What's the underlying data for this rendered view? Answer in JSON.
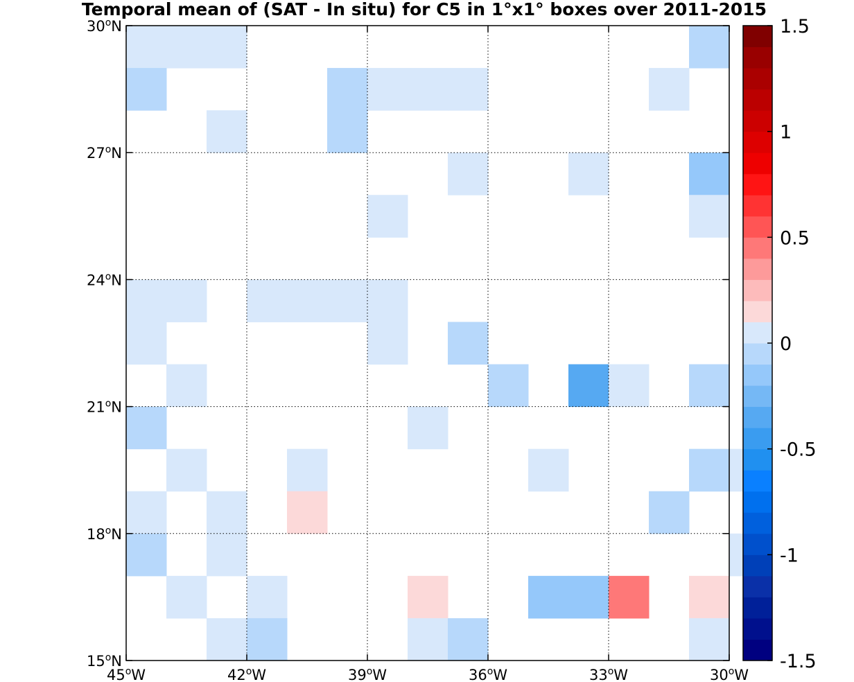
{
  "chart_data": {
    "type": "heatmap",
    "title": "Temporal mean of (SAT - In situ) for C5 in 1°x1° boxes over 2011-2015",
    "x_range": [
      -45,
      -30
    ],
    "y_range": [
      15,
      30
    ],
    "cell_size_deg": 1,
    "grid": true,
    "grid_style": "dotted",
    "x_ticks": [
      {
        "value": -45,
        "label": "45",
        "hemi": "W"
      },
      {
        "value": -42,
        "label": "42",
        "hemi": "W"
      },
      {
        "value": -39,
        "label": "39",
        "hemi": "W"
      },
      {
        "value": -36,
        "label": "36",
        "hemi": "W"
      },
      {
        "value": -33,
        "label": "33",
        "hemi": "W"
      },
      {
        "value": -30,
        "label": "30",
        "hemi": "W"
      }
    ],
    "y_ticks": [
      {
        "value": 15,
        "label": "15",
        "hemi": "N"
      },
      {
        "value": 18,
        "label": "18",
        "hemi": "N"
      },
      {
        "value": 21,
        "label": "21",
        "hemi": "N"
      },
      {
        "value": 24,
        "label": "24",
        "hemi": "N"
      },
      {
        "value": 27,
        "label": "27",
        "hemi": "N"
      },
      {
        "value": 30,
        "label": "30",
        "hemi": "N"
      }
    ],
    "colorbar": {
      "range": [
        -1.5,
        1.5
      ],
      "levels": 30,
      "colors": [
        "#000080",
        "#00108d",
        "#002099",
        "#0a30a8",
        "#0040b8",
        "#0050cc",
        "#0060dd",
        "#0070ee",
        "#0a80ff",
        "#2090f0",
        "#3a9cf0",
        "#56a9f2",
        "#75b8f5",
        "#95c8fa",
        "#b7d8fb",
        "#d8e8fb",
        "#fcd9d9",
        "#fdbbbb",
        "#fd9a9a",
        "#fe7878",
        "#ff5555",
        "#ff3333",
        "#ff1414",
        "#ee0000",
        "#dd0000",
        "#cc0000",
        "#bb0000",
        "#aa0000",
        "#990000",
        "#800000"
      ],
      "tick_labels": [
        {
          "value": 1.5,
          "label": "1.5"
        },
        {
          "value": 1,
          "label": "1"
        },
        {
          "value": 0.5,
          "label": "0.5"
        },
        {
          "value": 0,
          "label": "0"
        },
        {
          "value": -0.5,
          "label": "-0.5"
        },
        {
          "value": -1,
          "label": "-1"
        },
        {
          "value": -1.5,
          "label": "-1.5"
        }
      ]
    },
    "cells": [
      {
        "lon": -45,
        "lat": 29,
        "value": 0.05
      },
      {
        "lon": -44,
        "lat": 29,
        "value": 0.05
      },
      {
        "lon": -43,
        "lat": 29,
        "value": 0.05
      },
      {
        "lon": -31,
        "lat": 29,
        "value": -0.05
      },
      {
        "lon": -45,
        "lat": 28,
        "value": -0.05
      },
      {
        "lon": -40,
        "lat": 28,
        "value": -0.05
      },
      {
        "lon": -39,
        "lat": 28,
        "value": 0.05
      },
      {
        "lon": -38,
        "lat": 28,
        "value": 0.05
      },
      {
        "lon": -37,
        "lat": 28,
        "value": 0.05
      },
      {
        "lon": -32,
        "lat": 28,
        "value": 0.05
      },
      {
        "lon": -43,
        "lat": 27,
        "value": 0.05
      },
      {
        "lon": -40,
        "lat": 27,
        "value": -0.05
      },
      {
        "lon": -37,
        "lat": 26,
        "value": 0.05
      },
      {
        "lon": -34,
        "lat": 26,
        "value": 0.05
      },
      {
        "lon": -31,
        "lat": 26,
        "value": -0.15
      },
      {
        "lon": -39,
        "lat": 25,
        "value": 0.05
      },
      {
        "lon": -31,
        "lat": 25,
        "value": 0.05
      },
      {
        "lon": -45,
        "lat": 23,
        "value": 0.05
      },
      {
        "lon": -44,
        "lat": 23,
        "value": 0.05
      },
      {
        "lon": -42,
        "lat": 23,
        "value": 0.05
      },
      {
        "lon": -41,
        "lat": 23,
        "value": 0.05
      },
      {
        "lon": -40,
        "lat": 23,
        "value": 0.05
      },
      {
        "lon": -39,
        "lat": 23,
        "value": 0.05
      },
      {
        "lon": -45,
        "lat": 22,
        "value": 0.05
      },
      {
        "lon": -39,
        "lat": 22,
        "value": 0.05
      },
      {
        "lon": -37,
        "lat": 22,
        "value": -0.05
      },
      {
        "lon": -44,
        "lat": 21,
        "value": 0.05
      },
      {
        "lon": -36,
        "lat": 21,
        "value": -0.05
      },
      {
        "lon": -34,
        "lat": 21,
        "value": -0.3
      },
      {
        "lon": -33,
        "lat": 21,
        "value": 0.05
      },
      {
        "lon": -31,
        "lat": 21,
        "value": -0.05
      },
      {
        "lon": -45,
        "lat": 20,
        "value": -0.05
      },
      {
        "lon": -38,
        "lat": 20,
        "value": 0.05
      },
      {
        "lon": -44,
        "lat": 19,
        "value": 0.05
      },
      {
        "lon": -41,
        "lat": 19,
        "value": 0.05
      },
      {
        "lon": -35,
        "lat": 19,
        "value": 0.05
      },
      {
        "lon": -31,
        "lat": 19,
        "value": -0.05
      },
      {
        "lon": -30,
        "lat": 19,
        "value": 0.05
      },
      {
        "lon": -45,
        "lat": 18,
        "value": 0.05
      },
      {
        "lon": -43,
        "lat": 18,
        "value": 0.05
      },
      {
        "lon": -41,
        "lat": 18,
        "value": 0.15
      },
      {
        "lon": -32,
        "lat": 18,
        "value": -0.05
      },
      {
        "lon": -45,
        "lat": 17,
        "value": -0.05
      },
      {
        "lon": -43,
        "lat": 17,
        "value": 0.05
      },
      {
        "lon": -30,
        "lat": 17,
        "value": 0.05
      },
      {
        "lon": -44,
        "lat": 16,
        "value": 0.05
      },
      {
        "lon": -42,
        "lat": 16,
        "value": 0.05
      },
      {
        "lon": -38,
        "lat": 16,
        "value": 0.15
      },
      {
        "lon": -35,
        "lat": 16,
        "value": -0.15
      },
      {
        "lon": -34,
        "lat": 16,
        "value": -0.15
      },
      {
        "lon": -33,
        "lat": 16,
        "value": 0.45
      },
      {
        "lon": -31,
        "lat": 16,
        "value": 0.15
      },
      {
        "lon": -43,
        "lat": 15,
        "value": 0.05
      },
      {
        "lon": -42,
        "lat": 15,
        "value": -0.05
      },
      {
        "lon": -38,
        "lat": 15,
        "value": 0.05
      },
      {
        "lon": -37,
        "lat": 15,
        "value": -0.05
      },
      {
        "lon": -31,
        "lat": 15,
        "value": 0.05
      }
    ]
  }
}
